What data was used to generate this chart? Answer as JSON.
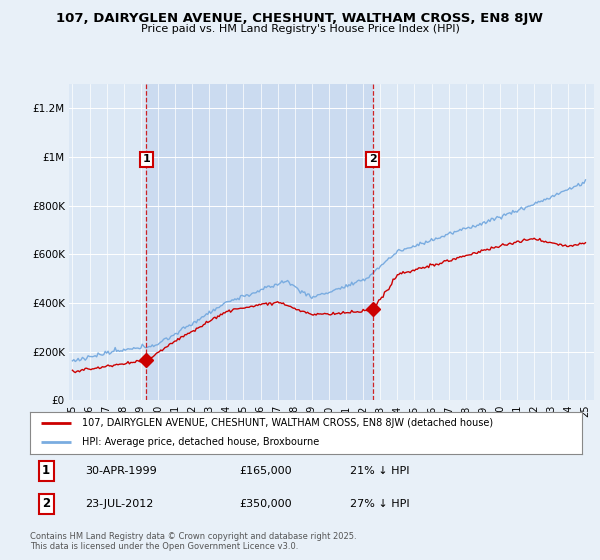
{
  "title": "107, DAIRYGLEN AVENUE, CHESHUNT, WALTHAM CROSS, EN8 8JW",
  "subtitle": "Price paid vs. HM Land Registry's House Price Index (HPI)",
  "background_color": "#e8f0f8",
  "plot_bg_color": "#dce8f5",
  "highlight_color": "#c8daf0",
  "legend_line1": "107, DAIRYGLEN AVENUE, CHESHUNT, WALTHAM CROSS, EN8 8JW (detached house)",
  "legend_line2": "HPI: Average price, detached house, Broxbourne",
  "sale1_date": "30-APR-1999",
  "sale1_price": "£165,000",
  "sale1_hpi": "21% ↓ HPI",
  "sale1_year": 1999.33,
  "sale1_value": 165000,
  "sale2_date": "23-JUL-2012",
  "sale2_price": "£350,000",
  "sale2_hpi": "27% ↓ HPI",
  "sale2_year": 2012.56,
  "sale2_value": 350000,
  "footer": "Contains HM Land Registry data © Crown copyright and database right 2025.\nThis data is licensed under the Open Government Licence v3.0.",
  "red_color": "#cc0000",
  "blue_color": "#7aace0",
  "dashed_color": "#cc0000",
  "ylim": [
    0,
    1300000
  ],
  "xlim_start": 1994.8,
  "xlim_end": 2025.5
}
